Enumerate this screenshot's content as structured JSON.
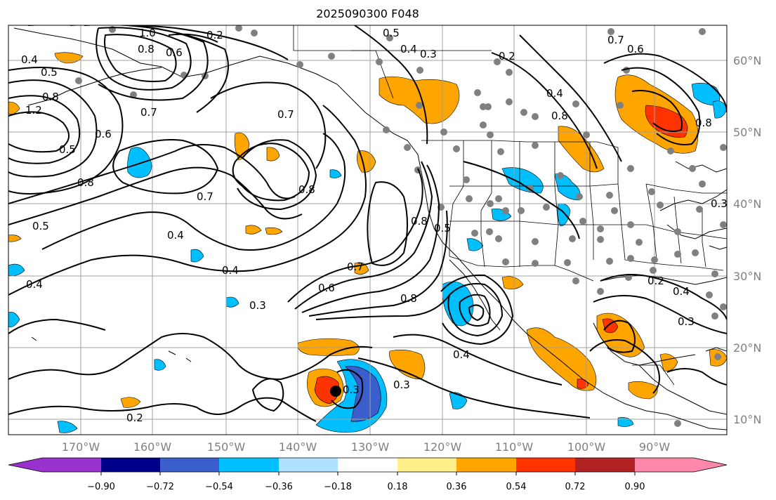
{
  "title": "2025090300 F048",
  "map": {
    "lon_ticks": [
      "170°W",
      "160°W",
      "150°W",
      "140°W",
      "130°W",
      "120°W",
      "110°W",
      "100°W",
      "90°W"
    ],
    "lat_ticks": [
      "60°N",
      "50°N",
      "40°N",
      "30°N",
      "20°N",
      "10°N"
    ],
    "contour_labels": [
      "0.4",
      "0.5",
      "0.8",
      "1.0",
      "0.8",
      "0.6",
      "0.2",
      "0.5",
      "0.4",
      "0.3",
      "0.2",
      "0.7",
      "0.6",
      "0.7",
      "0.6",
      "0.8",
      "0.5",
      "0.8",
      "0.7",
      "0.7",
      "0.4",
      "0.5",
      "0.4",
      "0.8",
      "0.4",
      "0.3",
      "0.3",
      "0.6",
      "0.7",
      "0.8",
      "0.3",
      "0.4",
      "0.3",
      "0.2",
      "0.8",
      "0.4",
      "0.2",
      "0.4",
      "0.3",
      "1.2",
      "0.8",
      "0.5"
    ],
    "colors": {
      "contour": "#000000",
      "coast": "#000000",
      "grid": "#a0a0a0",
      "station": "#808080"
    }
  },
  "colorbar": {
    "colors": [
      "#9932cc",
      "#00008b",
      "#3a5fcd",
      "#1e90ff",
      "#00bfff",
      "#b0e2ff",
      "#ffffff",
      "#fff08c",
      "#ffa500",
      "#ff3300",
      "#b22222",
      "#ff88aa"
    ],
    "tick_labels": [
      "−0.90",
      "−0.72",
      "−0.54",
      "−0.36",
      "−0.18",
      "0.18",
      "0.36",
      "0.54",
      "0.72",
      "0.90"
    ]
  }
}
